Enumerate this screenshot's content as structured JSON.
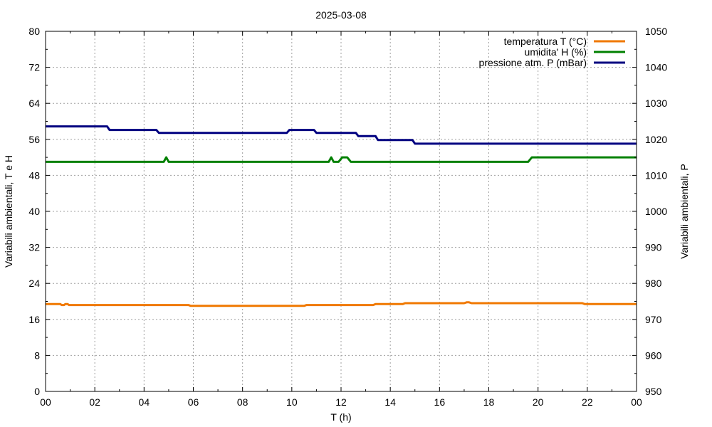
{
  "chart_data": {
    "type": "line",
    "title": "2025-03-08",
    "xlabel": "T (h)",
    "ylabel_left": "Variabili ambientali, T e H",
    "ylabel_right": "Variabili ambientali, P",
    "xlim": [
      0,
      24
    ],
    "ylim_left": [
      0,
      80
    ],
    "ylim_right": [
      950,
      1050
    ],
    "x_ticks": [
      "00",
      "02",
      "04",
      "06",
      "08",
      "10",
      "12",
      "14",
      "16",
      "18",
      "20",
      "22",
      "00"
    ],
    "y_left_ticks": [
      "0",
      "8",
      "16",
      "24",
      "32",
      "40",
      "48",
      "56",
      "64",
      "72",
      "80"
    ],
    "y_right_ticks": [
      "950",
      "960",
      "970",
      "980",
      "990",
      "1000",
      "1010",
      "1020",
      "1030",
      "1040",
      "1050"
    ],
    "grid": true,
    "legend_position": "top-right",
    "series": [
      {
        "name": "temperatura T (°C)",
        "axis": "left",
        "color": "#f07800",
        "x": [
          0,
          0.6,
          0.65,
          0.75,
          0.8,
          0.9,
          0.95,
          5.8,
          5.9,
          10.5,
          10.6,
          13.3,
          13.4,
          14.5,
          14.6,
          17.0,
          17.1,
          17.2,
          17.3,
          21.8,
          21.9,
          24
        ],
        "y": [
          19.4,
          19.4,
          19.2,
          19.2,
          19.4,
          19.4,
          19.2,
          19.2,
          19.0,
          19.0,
          19.2,
          19.2,
          19.4,
          19.4,
          19.6,
          19.6,
          19.8,
          19.8,
          19.6,
          19.6,
          19.4,
          19.4
        ]
      },
      {
        "name": "umidita' H (%)",
        "axis": "left",
        "color": "#008000",
        "x": [
          0,
          4.8,
          4.9,
          5.0,
          11.5,
          11.6,
          11.7,
          11.9,
          12.05,
          12.25,
          12.4,
          19.6,
          19.75,
          24
        ],
        "y": [
          51,
          51,
          52,
          51,
          51,
          52,
          51,
          51,
          52,
          52,
          51,
          51,
          52,
          52
        ]
      },
      {
        "name": "pressione atm. P (mBar)",
        "axis": "right",
        "color": "#000080",
        "x": [
          0,
          2.5,
          2.6,
          4.5,
          4.6,
          9.8,
          9.9,
          10.9,
          11.0,
          12.6,
          12.7,
          13.4,
          13.5,
          14.9,
          15.0,
          24
        ],
        "y": [
          1023.6,
          1023.6,
          1022.6,
          1022.6,
          1021.8,
          1021.8,
          1022.6,
          1022.6,
          1021.8,
          1021.8,
          1020.9,
          1020.9,
          1019.8,
          1019.8,
          1018.8,
          1018.8
        ]
      }
    ]
  }
}
